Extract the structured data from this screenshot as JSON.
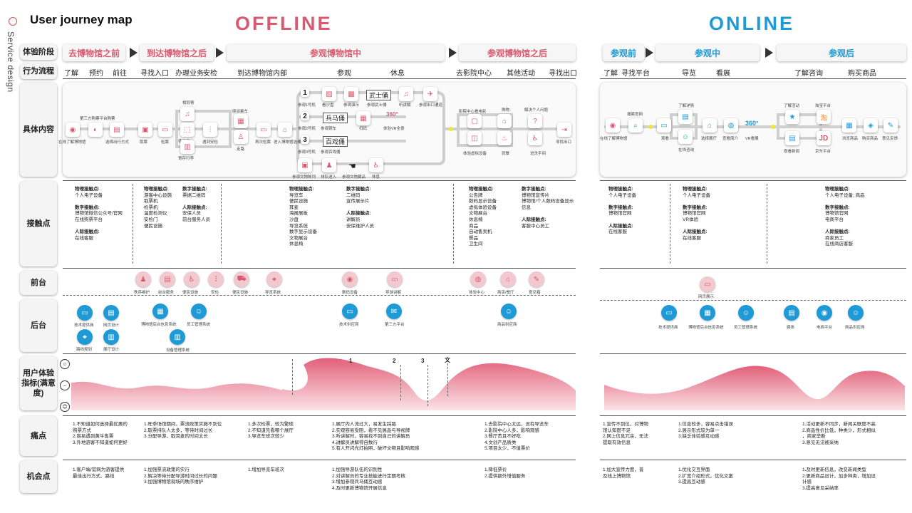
{
  "title": "User journey map",
  "side_label": "Service design",
  "offline_title": "OFFLINE",
  "online_title": "ONLINE",
  "row_labels": {
    "stage": "体验阶段",
    "flow": "行为流程",
    "content": "具体内容",
    "touchpoint": "接触点",
    "front": "前台",
    "back": "后台",
    "satisfaction": "用户体验指标(满意度)",
    "pain": "痛点",
    "opportunity": "机会点"
  },
  "offline_stages": [
    "去博物馆之前",
    "到达博物馆之后",
    "参观博物馆中",
    "参观博物馆之后"
  ],
  "online_stages": [
    "参观前",
    "参观中",
    "参观后"
  ],
  "offline_flow": [
    "了解",
    "预约",
    "前往",
    "寻找入口",
    "办理业务",
    "安检",
    "到达博物馆内部",
    "参观",
    "休息",
    "去影院中心",
    "其他活动",
    "寻找出口"
  ],
  "online_flow": [
    "了解",
    "寻找平台",
    "导览",
    "看展",
    "了解咨询",
    "购买商品"
  ],
  "content_captions": {
    "c1": "在线了解博物馆",
    "c2": "第三方购票平台购票",
    "c3": "选择出行方式",
    "c4": "取票",
    "c5": "检票",
    "c6": "使用存包",
    "c7": "遇到安检",
    "c8": "相同寄",
    "c9": "寄存行李",
    "c10": "座谈乘车",
    "c11": "走路",
    "c12": "再次检票",
    "c13": "进入博物馆选择路线",
    "c14": "参观1号机",
    "c15": "看沙盘",
    "c16": "参观演示",
    "c17": "参观武士俑",
    "c18": "听讲解",
    "c19": "参观出口通道",
    "c20": "参观2号机",
    "c21": "参观铜车",
    "c22": "扫码",
    "c23": "体验VR全景",
    "c24": "参观3号机",
    "c25": "参观百戏俑",
    "c26": "参观文物陈列",
    "c27": "排队进入",
    "c28": "参观文物藏品",
    "c29": "休息",
    "c30": "影院中心看电影",
    "c31": "体验虚拟设备",
    "c32": "购物",
    "c33": "就餐",
    "c34": "解决个人问题",
    "c35": "进洗手间",
    "c36": "寻找出口",
    "o1": "在线了解博物馆",
    "o2": "搜索官网",
    "o3": "观看",
    "o4": "了解详情",
    "o5": "在线咨询",
    "o6": "选择展厅",
    "o7": "查看简介",
    "o8": "VR看展",
    "o9": "了解活动",
    "o10": "观看新闻",
    "o11": "淘宝平台",
    "o12": "京东平台",
    "o13": "浏览商品",
    "o14": "购买商品",
    "o15": "意见反馈"
  },
  "content_labels": {
    "n1": "1",
    "n2": "2",
    "n3": "3",
    "hall1": "武士俑",
    "hall2": "兵马俑",
    "hall3": "百戏俑",
    "vr": "360°"
  },
  "touchpoints": {
    "t1": [
      "物理接触点:",
      "个人电子设备",
      "数字接触点:",
      "博物馆微信公众号/官网",
      "在线购票平台",
      "人际接触点:",
      "在线客服"
    ],
    "t2": [
      "物理接触点:",
      "游客中心设施",
      "取票机",
      "检票机",
      "温度检测仪",
      "安检门",
      "便民设施"
    ],
    "t3": [
      "数字接触点:",
      "票据二维码",
      "人际接触点:",
      "安保人员",
      "前台服务人员"
    ],
    "t4": [
      "物理接触点:",
      "导览车",
      "便民设施",
      "耳麦",
      "海报展板",
      "沙盘",
      "导览系统",
      "数字显示设备",
      "文物展台",
      "休息椅"
    ],
    "t5": [
      "数字接触点:",
      "二维码",
      "宣传展示片",
      "人际接触点:",
      "讲解员",
      "安保维护人员"
    ],
    "t6": [
      "物理接触点:",
      "公告牌",
      "数码显示设备",
      "虚拟体验设备",
      "文物展台",
      "休息椅",
      "商品",
      "自动售卖机",
      "餐品",
      "卫生间"
    ],
    "t7": [
      "数字接触点:",
      "博物馆宣传片",
      "博物馆/个人数码设备显示",
      "信息",
      "人际接触点:",
      "客服中心员工"
    ],
    "t8": [
      "物理接触点:",
      "个人电子设备",
      "数字接触点:",
      "博物馆官网",
      "人际接触点:",
      "在线客服"
    ],
    "t9": [
      "物理接触点:",
      "个人电子设备",
      "数字接触点:",
      "博物馆官网",
      "VR体验",
      "人际接触点:",
      "在线客服"
    ],
    "t10": [
      "物理接触点:",
      "个人电子设备; 商品",
      "数字接触点:",
      "博物馆官网",
      "电商平台",
      "人际接触点:",
      "商家员工",
      "在线商店客服"
    ]
  },
  "front": [
    "秩序维护",
    "前台服务",
    "便民设施",
    "安检",
    "便民设施",
    "导览系统",
    "数码设备",
    "导游讲解",
    "体验中心",
    "商店/餐厅",
    "意见箱",
    "网页展示"
  ],
  "back": [
    "技术提供商",
    "网页设计",
    "路线规划",
    "展厅设计",
    "博物馆后台信息系统",
    "员工管理系统",
    "设备管理系统",
    "技术供应商",
    "第三方平台",
    "商品供应商",
    "技术提供商",
    "博物馆后台信息系统",
    "员工管理系统",
    "媒体",
    "电商平台",
    "商品供应商"
  ],
  "satisfaction_markers": [
    "1",
    "2",
    "3",
    "文"
  ],
  "pain": {
    "p1": [
      "1.不知道如何选择最优惠的",
      "购票方式",
      "2.容易遇到黄牛售票",
      "3.外地游客不知道如何更好"
    ],
    "p2": [
      "1.旺季场馆期间，票流政策实施不到位",
      "2.取票排队人太多，等待时间过长",
      "3.分配导游，取耳麦的时间太长"
    ],
    "p3": [
      "1.多次检票，较为繁琐",
      "2.不知道先看哪个展厅",
      "3.导览车班次较少"
    ],
    "p4": [
      "1.展厅内人流过大，易发生踩踏",
      "2.实观容易受阻，看不见展品与导视牌",
      "3.听讲解时，容易找不到自己的讲解员",
      "4.讲解员讲解得自数行",
      "5.有人开闪光灯拍照，破坏文物且影响观感"
    ],
    "p5": [
      "1.去影院中心太远，没有导览车",
      "2.影院中心人多，影响观感",
      "3.餐厅贵且不好吃",
      "4.文创产品质类",
      "5.项目太少，不值票价"
    ],
    "p6": [
      "1.宣传不到位，对博物",
      "馆认知度不足",
      "2.网上信息冗余，无法",
      "提取有效信息"
    ],
    "p7": [
      "1.信息较多，容易点击错误",
      "2.展示形式较为单一",
      "3.缺乏体验感互动感"
    ],
    "p8": [
      "1.活动更新不同步，新闻关联度不高",
      "2.商品性价比低，种类少，形式相似",
      "，商家垄断",
      "3.意见无法被采纳"
    ]
  },
  "opportunity": {
    "o1": [
      "1.客户端/官网为游客提供",
      "最佳出行方式、路线"
    ],
    "o2": [
      "1.加强票流政策的实行",
      "2.解决等待分配导游时间过长的问题",
      "3.加强博物馆现场的秩序维护"
    ],
    "o3": [
      "1.增加导览车班次"
    ],
    "o4": [
      "1.加强导游队伍的识别性",
      "2.对讲解员的专业技能进行定期考核",
      "3.增加参观兵马俑互动感",
      "4.及时更新博物馆开展信息"
    ],
    "o5": [
      "1.降低票价",
      "2.提供额外增值服务"
    ],
    "o6": [
      "1.加大宣传力度，普",
      "及线上博物馆"
    ],
    "o7": [
      "1.优化交互界面",
      "2.扩宽介绍形式，优化文案",
      "3.提高互动感"
    ],
    "o8": [
      "1.及时更新信息，改变新闻类型",
      "2.更新商品设计，加多种类，增加设",
      "计感",
      "3.提高意见采纳率"
    ]
  },
  "colors": {
    "accent_red": "#d95a70",
    "accent_blue": "#1e9ad6",
    "curve": "#e26079"
  }
}
